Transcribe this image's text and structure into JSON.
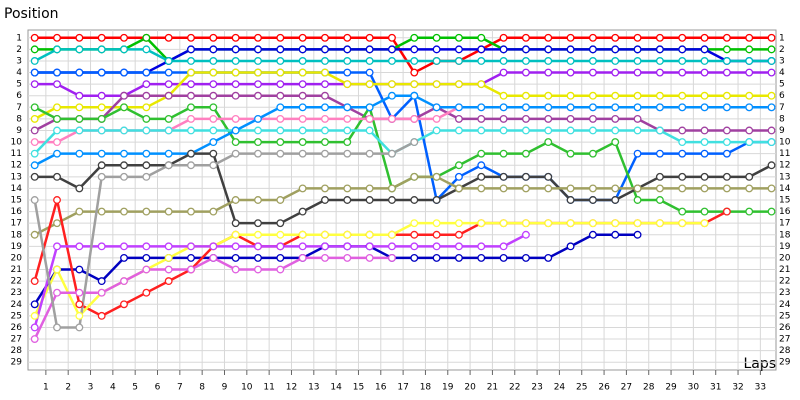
{
  "chart_data": {
    "type": "line",
    "y_axis_label": "Position",
    "x_axis_label": "Laps",
    "x": [
      0.5,
      1.5,
      2.5,
      3.5,
      4.5,
      5.5,
      6.5,
      7.5,
      8.5,
      9.5,
      10.5,
      11.5,
      12.5,
      13.5,
      14.5,
      15.5,
      16.5,
      17.5,
      18.5,
      19.5,
      20.5,
      21.5,
      22.5,
      23.5,
      24.5,
      25.5,
      26.5,
      27.5,
      28.5,
      29.5,
      30.5,
      31.5,
      32.5,
      33.5
    ],
    "xlim": [
      0.2,
      33.7
    ],
    "xticks": [
      1,
      2,
      3,
      4,
      5,
      6,
      7,
      8,
      9,
      10,
      11,
      12,
      13,
      14,
      15,
      16,
      17,
      18,
      19,
      20,
      21,
      22,
      23,
      24,
      25,
      26,
      27,
      28,
      29,
      30,
      31,
      32,
      33
    ],
    "ylim": [
      0.5,
      29.5
    ],
    "y_reversed": true,
    "yticks": [
      1,
      2,
      3,
      4,
      5,
      6,
      7,
      8,
      9,
      10,
      11,
      12,
      13,
      14,
      15,
      16,
      17,
      18,
      19,
      20,
      21,
      22,
      23,
      24,
      25,
      26,
      27,
      28,
      29
    ],
    "grid": true,
    "series": [
      {
        "color": "#ff0000",
        "values": [
          1,
          1,
          1,
          1,
          1,
          1,
          1,
          1,
          1,
          1,
          1,
          1,
          1,
          1,
          1,
          1,
          1,
          4,
          3,
          3,
          2,
          1,
          1,
          1,
          1,
          1,
          1,
          1,
          1,
          1,
          1,
          1,
          1,
          1
        ]
      },
      {
        "color": "#00c000",
        "values": [
          2,
          2,
          2,
          2,
          2,
          1,
          3,
          2,
          2,
          2,
          2,
          2,
          2,
          2,
          2,
          2,
          2,
          1,
          1,
          1,
          1,
          2,
          2,
          2,
          2,
          2,
          2,
          2,
          2,
          2,
          2,
          2,
          2,
          2
        ]
      },
      {
        "color": "#0000e0",
        "values": [
          4,
          4,
          4,
          4,
          4,
          4,
          3,
          2,
          2,
          2,
          2,
          2,
          2,
          2,
          2,
          2,
          2,
          2,
          2,
          2,
          2,
          2,
          2,
          2,
          2,
          2,
          2,
          2,
          2,
          2,
          2,
          3,
          3,
          3
        ]
      },
      {
        "color": "#00c0c0",
        "values": [
          3,
          2,
          2,
          2,
          2,
          2,
          3,
          3,
          3,
          3,
          3,
          3,
          3,
          3,
          3,
          3,
          3,
          3,
          3,
          3,
          3,
          3,
          3,
          3,
          3,
          3,
          3,
          3,
          3,
          3,
          3,
          3,
          3,
          3
        ]
      },
      {
        "color": "#0060ff",
        "values": [
          4,
          4,
          4,
          4,
          4,
          4,
          4,
          4,
          4,
          4,
          4,
          4,
          4,
          4,
          4,
          4,
          8,
          6,
          15,
          13,
          12,
          13,
          13,
          13,
          15,
          15,
          15,
          11,
          11,
          11,
          11,
          11,
          10,
          10
        ]
      },
      {
        "color": "#a020f0",
        "values": [
          5,
          5,
          6,
          6,
          6,
          5,
          5,
          5,
          5,
          5,
          5,
          5,
          5,
          5,
          5,
          5,
          5,
          5,
          5,
          5,
          5,
          4,
          4,
          4,
          4,
          4,
          4,
          4,
          4,
          4,
          4,
          4,
          4,
          4
        ]
      },
      {
        "color": "#e8e800",
        "values": [
          8,
          7,
          7,
          7,
          7,
          7,
          6,
          4,
          4,
          4,
          4,
          4,
          4,
          4,
          5,
          5,
          5,
          5,
          5,
          5,
          5,
          6,
          6,
          6,
          6,
          6,
          6,
          6,
          6,
          6,
          6,
          6,
          6,
          6
        ]
      },
      {
        "color": "#a040a0",
        "values": [
          9,
          8,
          8,
          8,
          6,
          6,
          6,
          6,
          6,
          6,
          6,
          6,
          6,
          6,
          7,
          8,
          8,
          8,
          7,
          8,
          8,
          8,
          8,
          8,
          8,
          8,
          8,
          8,
          9,
          9,
          9,
          9,
          9,
          9
        ]
      },
      {
        "color": "#30c030",
        "values": [
          7,
          8,
          8,
          8,
          7,
          8,
          8,
          7,
          7,
          10,
          10,
          10,
          10,
          10,
          10,
          7,
          14,
          13,
          13,
          12,
          11,
          11,
          11,
          10,
          11,
          11,
          10,
          15,
          15,
          16,
          16,
          16,
          16,
          16
        ]
      },
      {
        "color": "#ff80c0",
        "values": [
          10,
          10,
          9,
          9,
          9,
          9,
          9,
          8,
          8,
          8,
          8,
          8,
          8,
          8,
          8,
          8,
          8,
          8,
          8,
          7,
          7,
          7,
          7,
          7,
          7,
          7,
          7,
          7,
          7,
          7,
          7,
          7,
          7,
          7
        ]
      },
      {
        "color": "#40e0e0",
        "values": [
          11,
          9,
          9,
          9,
          9,
          9,
          9,
          9,
          9,
          9,
          9,
          9,
          9,
          9,
          9,
          9,
          11,
          10,
          9,
          9,
          9,
          9,
          9,
          9,
          9,
          9,
          9,
          9,
          9,
          10,
          10,
          10,
          10,
          10
        ]
      },
      {
        "color": "#0090ff",
        "values": [
          12,
          11,
          11,
          11,
          11,
          11,
          11,
          11,
          10,
          9,
          8,
          7,
          7,
          7,
          7,
          7,
          6,
          6,
          7,
          7,
          7,
          7,
          7,
          7,
          7,
          7,
          7,
          7,
          7,
          7,
          7,
          7,
          7,
          7
        ]
      },
      {
        "color": "#404040",
        "values": [
          13,
          13,
          14,
          12,
          12,
          12,
          12,
          11,
          11,
          17,
          17,
          17,
          16,
          15,
          15,
          15,
          15,
          15,
          15,
          14,
          13,
          13,
          13,
          13,
          15,
          15,
          15,
          14,
          13,
          13,
          13,
          13,
          13,
          12
        ]
      },
      {
        "color": "#a0a060",
        "values": [
          18,
          17,
          16,
          16,
          16,
          16,
          16,
          16,
          16,
          15,
          15,
          15,
          14,
          14,
          14,
          14,
          14,
          13,
          13,
          14,
          14,
          14,
          14,
          14,
          14,
          14,
          14,
          14,
          14,
          14,
          14,
          14,
          14,
          14
        ]
      },
      {
        "color": "#0000c0",
        "values": [
          24,
          21,
          21,
          22,
          20,
          20,
          20,
          20,
          20,
          20,
          20,
          20,
          20,
          19,
          19,
          19,
          20,
          20,
          20,
          20,
          20,
          20,
          20,
          20,
          19,
          18,
          18,
          18,
          null,
          null,
          null,
          null,
          null,
          null
        ]
      },
      {
        "color": "#ff2020",
        "values": [
          22,
          15,
          24,
          25,
          24,
          23,
          22,
          21,
          19,
          18,
          19,
          19,
          18,
          18,
          18,
          18,
          18,
          18,
          18,
          18,
          17,
          17,
          17,
          17,
          17,
          17,
          17,
          17,
          17,
          17,
          17,
          16,
          null,
          null
        ]
      },
      {
        "color": "#ffff40",
        "values": [
          25,
          21,
          25,
          23,
          22,
          21,
          20,
          19,
          19,
          18,
          18,
          18,
          18,
          18,
          18,
          18,
          18,
          17,
          17,
          17,
          17,
          17,
          17,
          17,
          17,
          17,
          17,
          17,
          17,
          17,
          17,
          null,
          null,
          null
        ]
      },
      {
        "color": "#c040ff",
        "values": [
          26,
          19,
          19,
          19,
          19,
          19,
          19,
          19,
          19,
          19,
          19,
          19,
          19,
          19,
          19,
          19,
          19,
          19,
          19,
          19,
          19,
          19,
          18,
          null,
          null,
          null,
          null,
          null,
          null,
          null,
          null,
          null,
          null,
          null
        ]
      },
      {
        "color": "#e060e0",
        "values": [
          27,
          23,
          23,
          23,
          22,
          21,
          21,
          21,
          20,
          21,
          21,
          21,
          20,
          20,
          20,
          20,
          20,
          null,
          null,
          null,
          null,
          null,
          null,
          null,
          null,
          null,
          null,
          null,
          null,
          null,
          null,
          null,
          null,
          null
        ]
      },
      {
        "color": "#a0a0a0",
        "values": [
          15,
          26,
          26,
          13,
          13,
          13,
          12,
          12,
          12,
          11,
          11,
          11,
          11,
          11,
          11,
          11,
          11,
          10,
          null,
          null,
          null,
          null,
          null,
          null,
          null,
          null,
          null,
          null,
          null,
          null,
          null,
          null,
          null,
          null
        ]
      }
    ]
  }
}
